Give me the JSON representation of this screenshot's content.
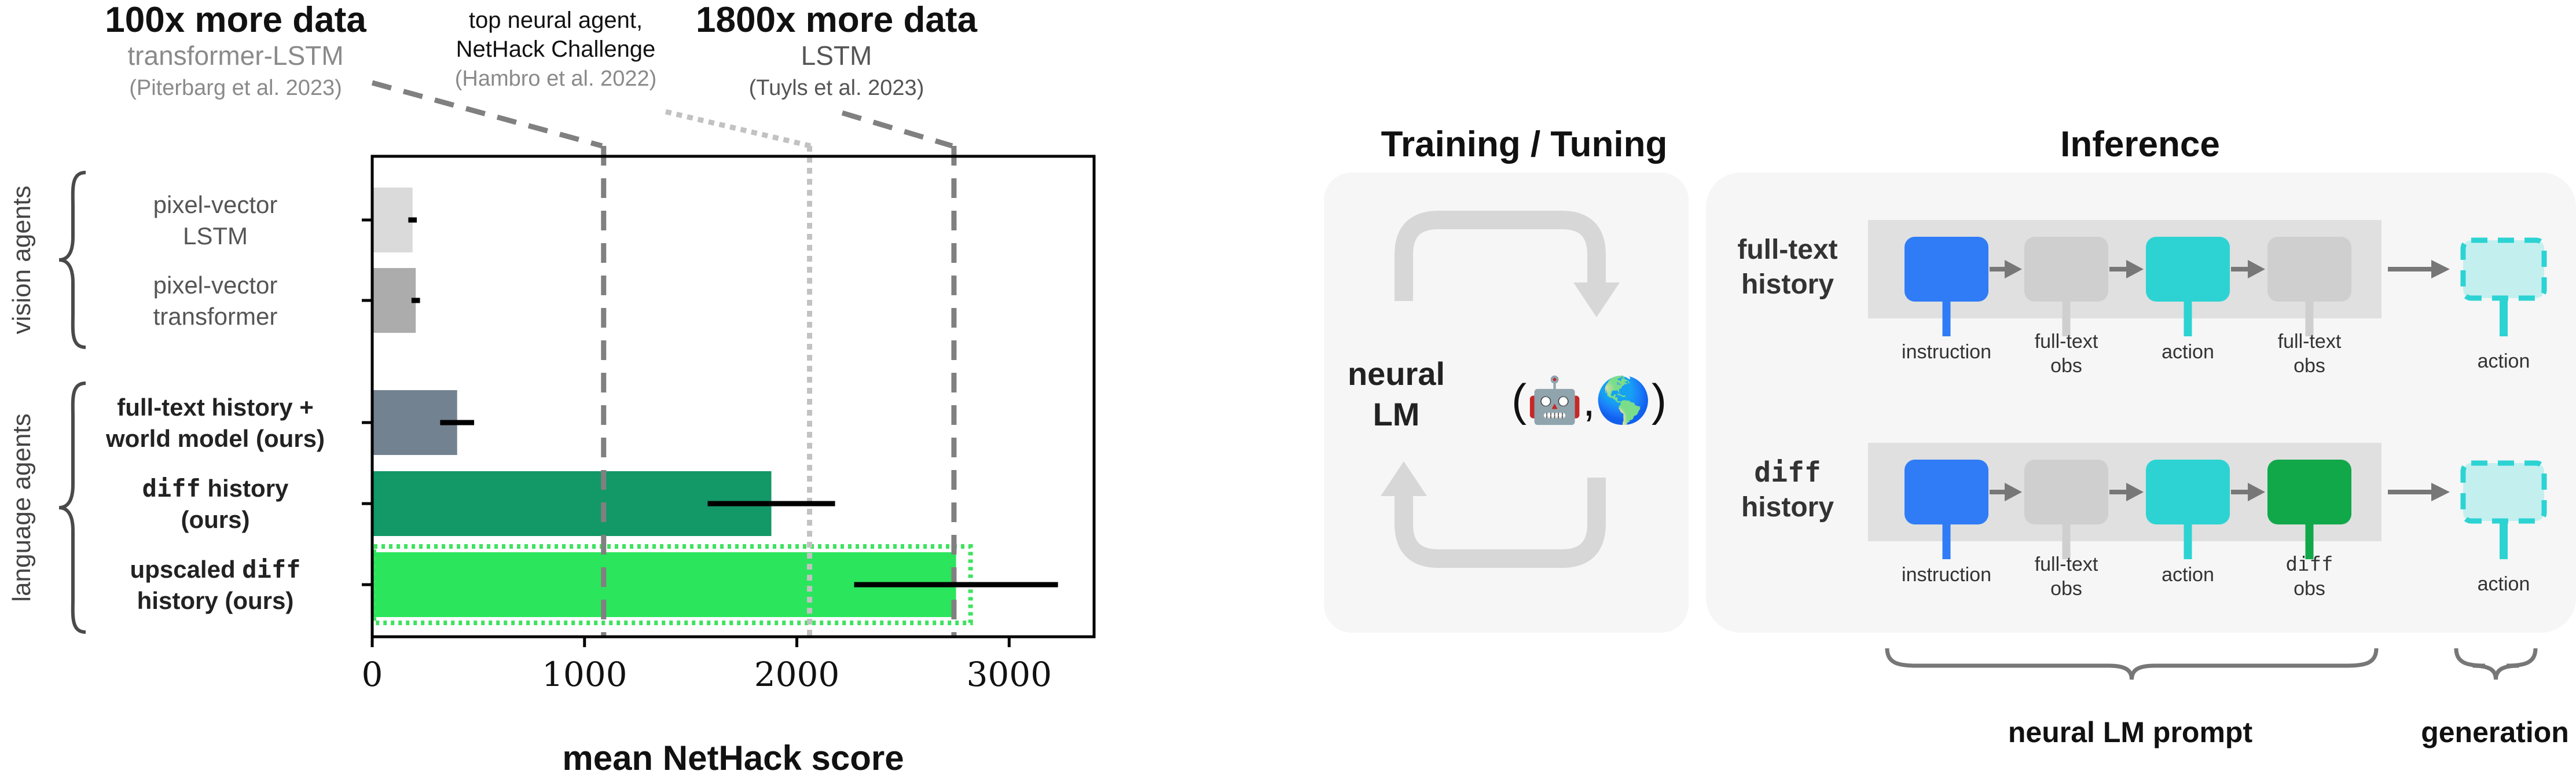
{
  "chart_data": {
    "type": "bar",
    "orientation": "horizontal",
    "xlabel": "mean NetHack score",
    "xlim": [
      0,
      3400
    ],
    "xticks": [
      0,
      1000,
      2000,
      3000
    ],
    "grid": false,
    "groups": [
      {
        "label": "vision agents",
        "rows": [
          0,
          1
        ]
      },
      {
        "label": "language agents",
        "rows": [
          2,
          3,
          4
        ]
      }
    ],
    "bars": [
      {
        "pre": "pixel-vector",
        "code": "",
        "post": "LSTM",
        "bold": false,
        "value": 190,
        "err": 20,
        "color": "#dadada"
      },
      {
        "pre": "pixel-vector",
        "code": "",
        "post": "transformer",
        "bold": false,
        "value": 205,
        "err": 20,
        "color": "#acacac"
      },
      {
        "pre": "full-text history +",
        "code": "",
        "post": "world model (ours)",
        "bold": true,
        "value": 400,
        "err": 80,
        "color": "#728291"
      },
      {
        "pre": "",
        "code": "diff",
        "post": "history (ours)",
        "bold": true,
        "value": 1880,
        "err": 300,
        "color": "#139867"
      },
      {
        "pre": "upscaled",
        "code": "diff",
        "post": "history (ours)",
        "bold": true,
        "value": 2750,
        "err": 480,
        "color": "#2be55d"
      }
    ],
    "reference_lines": [
      {
        "value": 1090,
        "style": "dashed",
        "heading": "100x more data",
        "model": "transformer-LSTM",
        "citation": "(Piterbarg et al. 2023)"
      },
      {
        "value": 2060,
        "style": "dotted",
        "heading": "",
        "model": "top neural agent,",
        "model2": "NetHack Challenge",
        "citation": "(Hambro et al. 2022)"
      },
      {
        "value": 2740,
        "style": "dashed",
        "heading": "1800x more data",
        "model": "LSTM",
        "citation": "(Tuyls et al. 2023)"
      }
    ]
  },
  "diagram": {
    "training_title": "Training / Tuning",
    "inference_title": "Inference",
    "neural_lm": [
      "neural",
      "LM"
    ],
    "env_symbol": "(🤖,🌎)",
    "rows": [
      {
        "label": [
          "full-text",
          "history"
        ],
        "label_code": false,
        "steps": [
          {
            "kind": "instruction",
            "color": "#2f7cf6",
            "label": [
              "instruction"
            ]
          },
          {
            "kind": "obs",
            "color": "#cfcfcf",
            "label": [
              "full-text",
              "obs"
            ]
          },
          {
            "kind": "action",
            "color": "#2dd3d3",
            "label": [
              "action"
            ]
          },
          {
            "kind": "obs",
            "color": "#cfcfcf",
            "label": [
              "full-text",
              "obs"
            ]
          }
        ],
        "output_label": "action"
      },
      {
        "label": [
          "diff",
          "history"
        ],
        "label_code": true,
        "steps": [
          {
            "kind": "instruction",
            "color": "#2f7cf6",
            "label": [
              "instruction"
            ]
          },
          {
            "kind": "obs",
            "color": "#cfcfcf",
            "label": [
              "full-text",
              "obs"
            ]
          },
          {
            "kind": "action",
            "color": "#2dd3d3",
            "label": [
              "action"
            ]
          },
          {
            "kind": "diff",
            "color": "#11a84a",
            "label": [
              "diff",
              "obs"
            ]
          }
        ],
        "output_label": "action"
      }
    ],
    "prompt_brace_label": "neural LM prompt",
    "generation_brace_label": "generation"
  }
}
